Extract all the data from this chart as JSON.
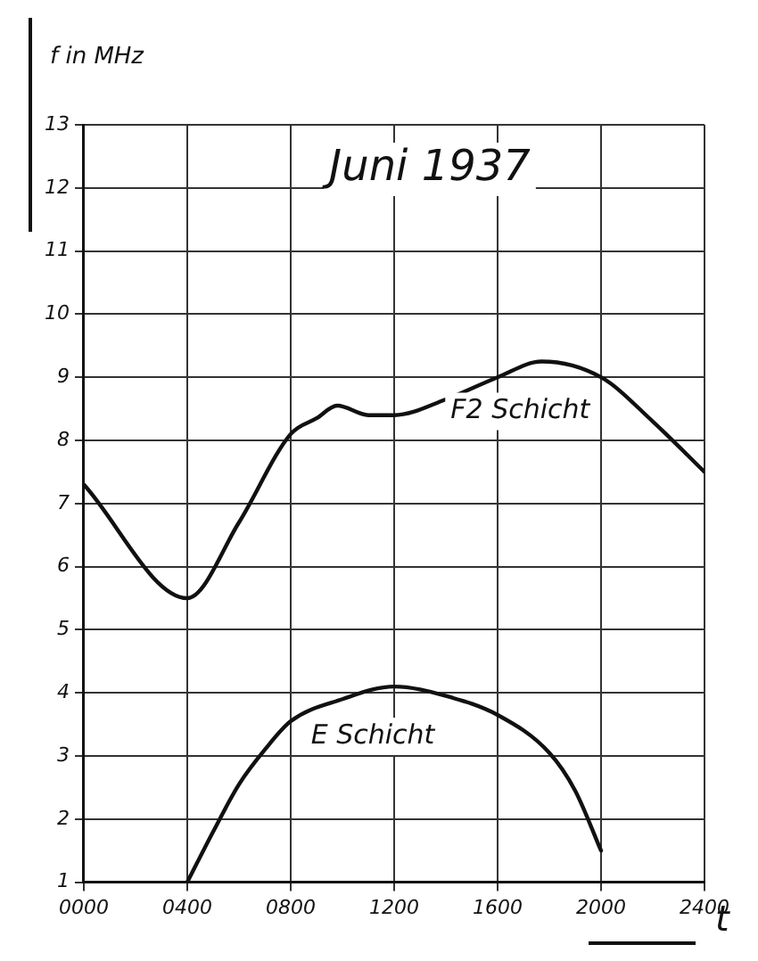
{
  "chart_data": {
    "type": "line",
    "title": "Juni 1937",
    "xlabel": "t",
    "ylabel": "f in MHz",
    "xlim": [
      0,
      2400
    ],
    "ylim": [
      1,
      13
    ],
    "xticks": [
      {
        "value": 0,
        "label": "0000"
      },
      {
        "value": 400,
        "label": "0400"
      },
      {
        "value": 800,
        "label": "0800"
      },
      {
        "value": 1200,
        "label": "1200"
      },
      {
        "value": 1600,
        "label": "1600"
      },
      {
        "value": 2000,
        "label": "2000"
      },
      {
        "value": 2400,
        "label": "2400"
      }
    ],
    "yticks": [
      1,
      2,
      3,
      4,
      5,
      6,
      7,
      8,
      9,
      10,
      11,
      12,
      13
    ],
    "grid": true,
    "legend": false,
    "marker": "none",
    "line_style": "solid",
    "series": [
      {
        "name": "F2 Schicht",
        "color": "#111111",
        "x": [
          0,
          400,
          600,
          800,
          900,
          980,
          1100,
          1200,
          1400,
          1600,
          1770,
          2000,
          2200,
          2400
        ],
        "values": [
          7.3,
          5.5,
          6.7,
          8.1,
          8.35,
          8.55,
          8.4,
          8.4,
          8.65,
          9.0,
          9.25,
          9.0,
          8.3,
          7.5
        ]
      },
      {
        "name": "E Schicht",
        "color": "#111111",
        "x": [
          400,
          500,
          600,
          700,
          800,
          1000,
          1200,
          1400,
          1600,
          1800,
          1900,
          2000
        ],
        "values": [
          1.0,
          1.8,
          2.55,
          3.1,
          3.55,
          3.9,
          4.1,
          3.95,
          3.65,
          3.05,
          2.45,
          1.5
        ]
      }
    ]
  }
}
